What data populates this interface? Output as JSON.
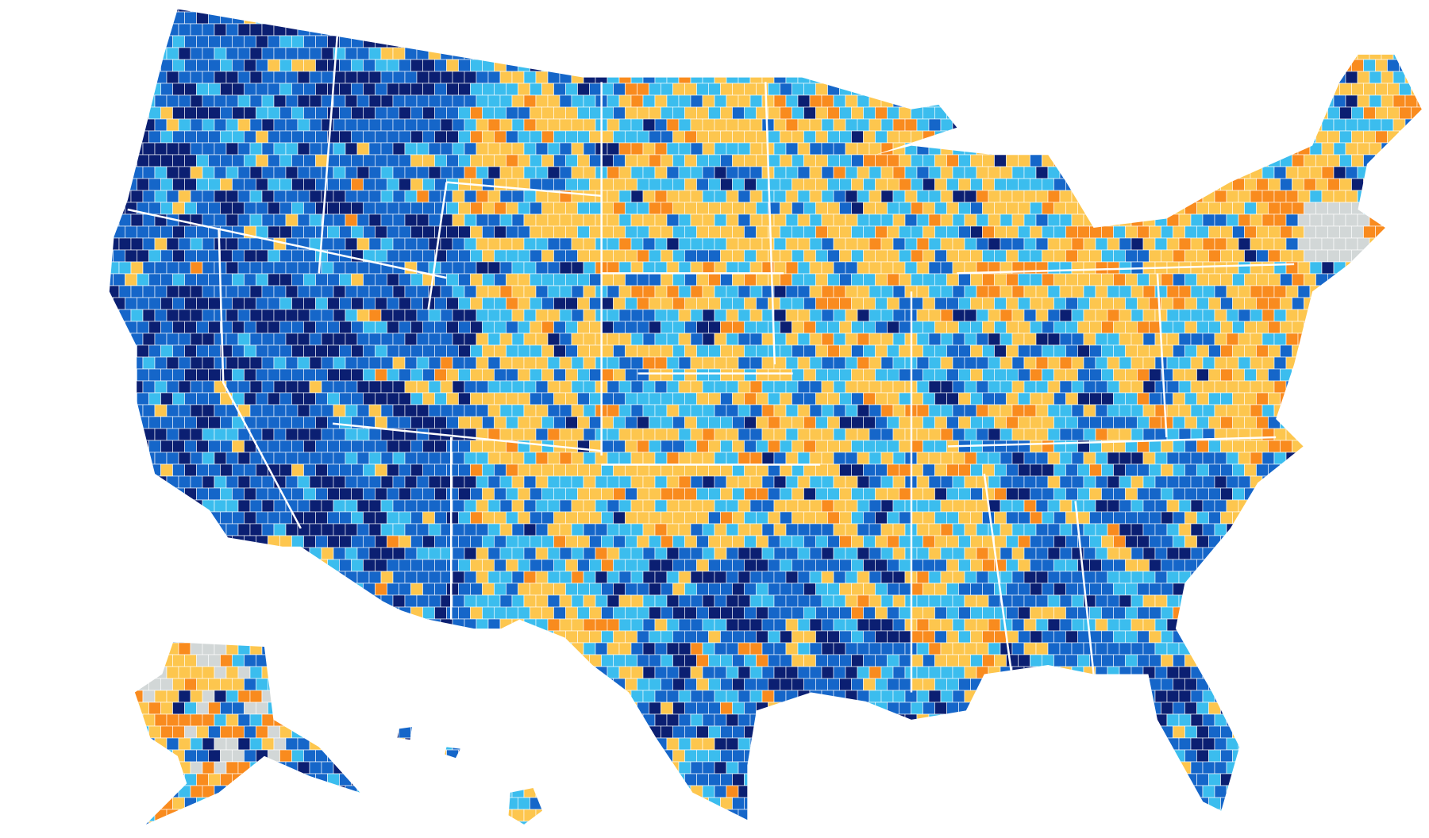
{
  "map": {
    "palette": [
      "#0b1f72",
      "#1566c9",
      "#3bbdee",
      "#fdc64e",
      "#f98b1e",
      "#d2d7d7"
    ]
  }
}
